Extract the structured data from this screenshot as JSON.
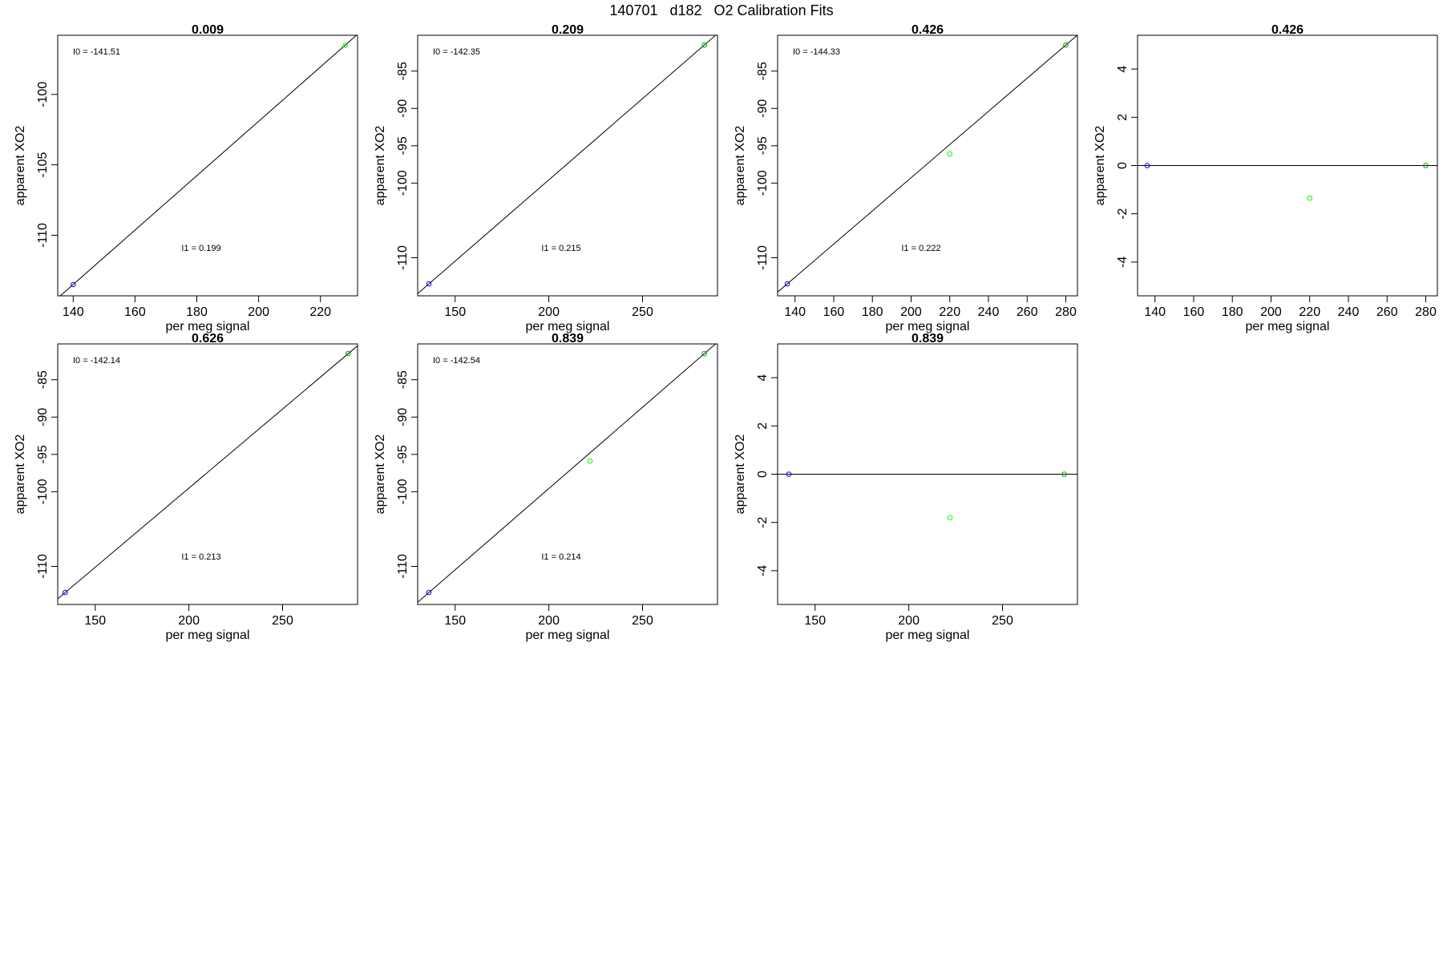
{
  "page_title": "140701   d182   O2 Calibration Fits",
  "colors": {
    "frame": "#000000",
    "fit_line": "#000000",
    "low_point": "#0000ff",
    "mid_point": "#00ff00",
    "high_point": "#00a000"
  },
  "chart_data": [
    {
      "type": "scatter",
      "title": "0.009",
      "xlabel": "per meg signal",
      "ylabel": "apparent XO2",
      "xlim": [
        135,
        232
      ],
      "ylim": [
        -114.3,
        -95.8
      ],
      "xticks": [
        140,
        160,
        180,
        200,
        220
      ],
      "yticks": [
        -110,
        -105,
        -100
      ],
      "points": [
        {
          "x": 140,
          "y": -113.5,
          "color": "#0000ff"
        },
        {
          "x": 228,
          "y": -96.5,
          "color": "#00ff00"
        }
      ],
      "fit_line": {
        "slope": 0.1931,
        "intercept": -140.53
      },
      "annotations": {
        "i0": "I0 =  -141.51",
        "i1": "I1 =  0.199"
      }
    },
    {
      "type": "scatter",
      "title": "0.209",
      "xlabel": "per meg signal",
      "ylabel": "apparent XO2",
      "xlim": [
        130,
        290
      ],
      "ylim": [
        -115.1,
        -80.2
      ],
      "xticks": [
        150,
        200,
        250
      ],
      "yticks": [
        -110,
        -100,
        -95,
        -90,
        -85
      ],
      "points": [
        {
          "x": 136,
          "y": -113.5,
          "color": "#0000ff"
        },
        {
          "x": 283,
          "y": -81.5,
          "color": "#00a000"
        }
      ],
      "fit_line": {
        "slope": 0.2177,
        "intercept": -143.11
      },
      "annotations": {
        "i0": "I0 =  -142.35",
        "i1": "I1 =  0.215"
      }
    },
    {
      "type": "scatter",
      "title": "0.426",
      "xlabel": "per meg signal",
      "ylabel": "apparent XO2",
      "xlim": [
        131,
        286
      ],
      "ylim": [
        -115.1,
        -80.2
      ],
      "xticks": [
        140,
        160,
        180,
        200,
        220,
        240,
        260,
        280
      ],
      "yticks": [
        -110,
        -100,
        -95,
        -90,
        -85
      ],
      "points": [
        {
          "x": 136,
          "y": -113.5,
          "color": "#0000ff"
        },
        {
          "x": 220,
          "y": -96.1,
          "color": "#00ff00"
        },
        {
          "x": 280,
          "y": -81.5,
          "color": "#00a000"
        }
      ],
      "fit_line": {
        "slope": 0.2222,
        "intercept": -143.72
      },
      "annotations": {
        "i0": "I0 =  -144.33",
        "i1": "I1 =  0.222"
      }
    },
    {
      "type": "scatter",
      "title": "0.426",
      "xlabel": "per meg signal",
      "ylabel": "apparent XO2",
      "xlim": [
        131,
        286
      ],
      "ylim": [
        -5.4,
        5.4
      ],
      "xticks": [
        140,
        160,
        180,
        200,
        220,
        240,
        260,
        280
      ],
      "yticks": [
        -4,
        -2,
        0,
        2,
        4
      ],
      "points": [
        {
          "x": 136,
          "y": 0,
          "color": "#0000ff"
        },
        {
          "x": 220,
          "y": -1.35,
          "color": "#00ff00"
        },
        {
          "x": 280,
          "y": 0,
          "color": "#00a000"
        }
      ],
      "zero_line": 0
    },
    {
      "type": "scatter",
      "title": "0.626",
      "xlabel": "per meg signal",
      "ylabel": "apparent XO2",
      "xlim": [
        130,
        290
      ],
      "ylim": [
        -115.1,
        -80.2
      ],
      "xticks": [
        150,
        200,
        250
      ],
      "yticks": [
        -110,
        -100,
        -95,
        -90,
        -85
      ],
      "points": [
        {
          "x": 134,
          "y": -113.5,
          "color": "#0000ff"
        },
        {
          "x": 285,
          "y": -81.5,
          "color": "#00a000"
        }
      ],
      "fit_line": {
        "slope": 0.2119,
        "intercept": -141.9
      },
      "annotations": {
        "i0": "I0 =  -142.14",
        "i1": "I1 =  0.213"
      }
    },
    {
      "type": "scatter",
      "title": "0.839",
      "xlabel": "per meg signal",
      "ylabel": "apparent XO2",
      "xlim": [
        130,
        290
      ],
      "ylim": [
        -115.1,
        -80.2
      ],
      "xticks": [
        150,
        200,
        250
      ],
      "yticks": [
        -110,
        -100,
        -95,
        -90,
        -85
      ],
      "points": [
        {
          "x": 136,
          "y": -113.5,
          "color": "#0000ff"
        },
        {
          "x": 222,
          "y": -95.9,
          "color": "#00ff00"
        },
        {
          "x": 283,
          "y": -81.5,
          "color": "#00a000"
        }
      ],
      "fit_line": {
        "slope": 0.2177,
        "intercept": -143.11
      },
      "annotations": {
        "i0": "I0 =  -142.54",
        "i1": "I1 =  0.214"
      }
    },
    {
      "type": "scatter",
      "title": "0.839",
      "xlabel": "per meg signal",
      "ylabel": "apparent XO2",
      "xlim": [
        130,
        290
      ],
      "ylim": [
        -5.4,
        5.4
      ],
      "xticks": [
        150,
        200,
        250
      ],
      "yticks": [
        -4,
        -2,
        0,
        2,
        4
      ],
      "points": [
        {
          "x": 136,
          "y": 0,
          "color": "#0000ff"
        },
        {
          "x": 222,
          "y": -1.8,
          "color": "#00ff00"
        },
        {
          "x": 283,
          "y": 0,
          "color": "#00a000"
        }
      ],
      "zero_line": 0
    }
  ]
}
